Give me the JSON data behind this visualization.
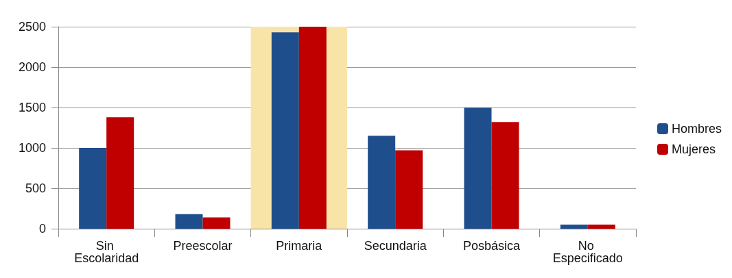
{
  "chart_data": {
    "type": "bar",
    "categories": [
      "Sin Escolaridad",
      "Preescolar",
      "Primaria",
      "Secundaria",
      "Posbásica",
      "No Especificado"
    ],
    "series": [
      {
        "name": "Hombres",
        "color": "#1f4e8c",
        "values": [
          1000,
          180,
          2430,
          1150,
          1500,
          50
        ]
      },
      {
        "name": "Mujeres",
        "color": "#c00000",
        "values": [
          1380,
          140,
          2500,
          970,
          1320,
          50
        ]
      }
    ],
    "ylim": [
      0,
      2500
    ],
    "yticks": [
      0,
      500,
      1000,
      1500,
      2000,
      2500
    ],
    "bands": [
      {
        "axis": "x",
        "from": "Primaria",
        "to": "Primaria",
        "color": "#f9e4a8"
      }
    ],
    "grid": "y",
    "legend": "right"
  }
}
